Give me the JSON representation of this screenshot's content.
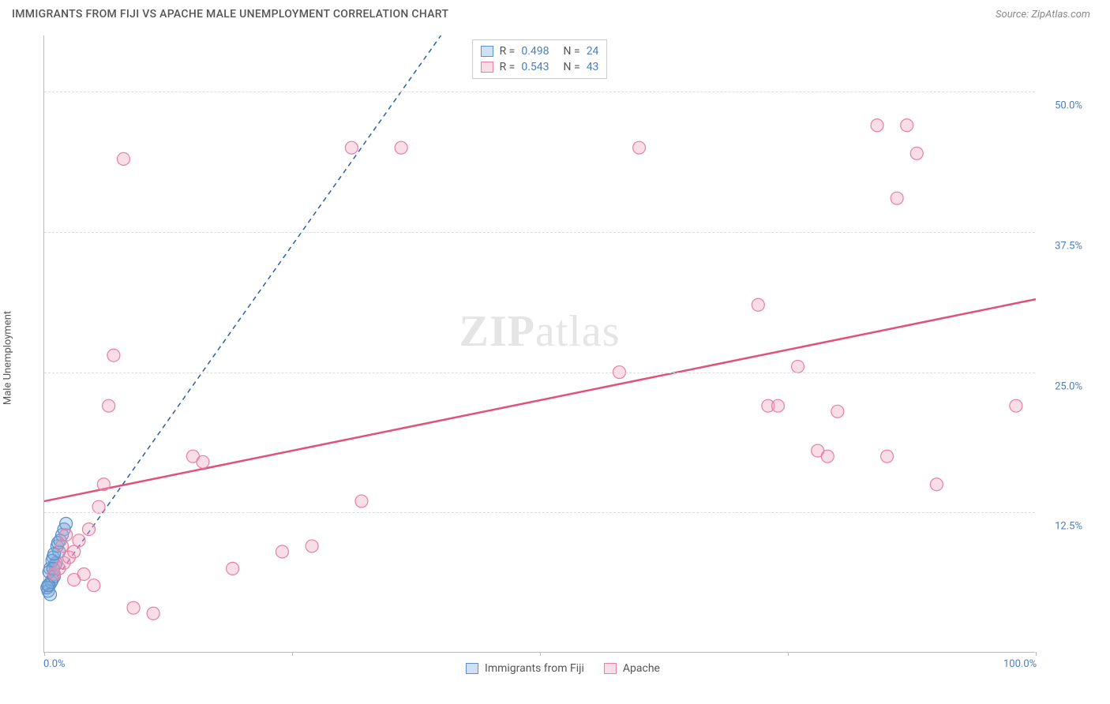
{
  "header": {
    "title": "IMMIGRANTS FROM FIJI VS APACHE MALE UNEMPLOYMENT CORRELATION CHART",
    "source": "Source: ZipAtlas.com"
  },
  "chart": {
    "type": "scatter",
    "y_axis_label": "Male Unemployment",
    "watermark_prefix": "ZIP",
    "watermark_suffix": "atlas",
    "xlim": [
      0,
      100
    ],
    "ylim": [
      0,
      55
    ],
    "x_ticks": [
      0,
      25,
      50,
      75,
      100
    ],
    "x_tick_labels_shown": {
      "0": "0.0%",
      "100": "100.0%"
    },
    "y_ticks": [
      12.5,
      25.0,
      37.5,
      50.0
    ],
    "y_tick_labels": [
      "12.5%",
      "25.0%",
      "37.5%",
      "50.0%"
    ],
    "background_color": "#ffffff",
    "grid_color": "#dddddd",
    "axis_color": "#bbbbbb",
    "tick_label_color": "#4a7ebb",
    "marker_radius": 8,
    "marker_stroke_width": 1.2,
    "series": [
      {
        "name": "Immigrants from Fiji",
        "fill_color": "rgba(120,170,220,0.35)",
        "stroke_color": "#5b8fc7",
        "trend_line_color": "#2a5fa8",
        "trend_line_style": "dashed",
        "trend_line_width": 1.5,
        "R": "0.498",
        "N": "24",
        "points": [
          [
            0.5,
            6.0
          ],
          [
            0.8,
            6.5
          ],
          [
            1.0,
            7.0
          ],
          [
            0.6,
            7.5
          ],
          [
            1.2,
            8.0
          ],
          [
            0.4,
            5.5
          ],
          [
            0.9,
            8.5
          ],
          [
            1.5,
            9.0
          ],
          [
            0.7,
            6.3
          ],
          [
            1.1,
            7.8
          ],
          [
            0.3,
            5.8
          ],
          [
            1.3,
            9.5
          ],
          [
            1.8,
            10.5
          ],
          [
            2.0,
            11.0
          ],
          [
            0.5,
            7.2
          ],
          [
            0.8,
            8.2
          ],
          [
            1.0,
            6.8
          ],
          [
            1.4,
            9.8
          ],
          [
            0.6,
            5.2
          ],
          [
            0.9,
            7.5
          ],
          [
            1.6,
            10.0
          ],
          [
            0.4,
            6.0
          ],
          [
            2.2,
            11.5
          ],
          [
            1.0,
            8.8
          ]
        ],
        "trend_line": {
          "x1": 0.3,
          "y1": 5.5,
          "x2": 40,
          "y2": 55
        }
      },
      {
        "name": "Apache",
        "fill_color": "rgba(240,160,185,0.35)",
        "stroke_color": "#e87fa0",
        "trend_line_color": "#e0527a",
        "trend_line_style": "solid",
        "trend_line_width": 2.5,
        "R": "0.543",
        "N": "43",
        "points": [
          [
            1.0,
            7.0
          ],
          [
            1.5,
            7.5
          ],
          [
            2.0,
            8.0
          ],
          [
            2.5,
            8.5
          ],
          [
            3.0,
            9.0
          ],
          [
            3.5,
            10.0
          ],
          [
            4.0,
            7.0
          ],
          [
            4.5,
            11.0
          ],
          [
            5.0,
            6.0
          ],
          [
            1.8,
            9.5
          ],
          [
            2.2,
            10.5
          ],
          [
            5.5,
            13.0
          ],
          [
            6.0,
            15.0
          ],
          [
            6.5,
            22.0
          ],
          [
            7.0,
            26.5
          ],
          [
            8.0,
            44.0
          ],
          [
            9.0,
            4.0
          ],
          [
            11.0,
            3.5
          ],
          [
            15.0,
            17.5
          ],
          [
            16.0,
            17.0
          ],
          [
            19.0,
            7.5
          ],
          [
            24.0,
            9.0
          ],
          [
            27.0,
            9.5
          ],
          [
            31.0,
            45.0
          ],
          [
            32.0,
            13.5
          ],
          [
            36.0,
            45.0
          ],
          [
            58.0,
            25.0
          ],
          [
            60.0,
            45.0
          ],
          [
            72.0,
            31.0
          ],
          [
            73.0,
            22.0
          ],
          [
            74.0,
            22.0
          ],
          [
            76.0,
            25.5
          ],
          [
            78.0,
            18.0
          ],
          [
            79.0,
            17.5
          ],
          [
            80.0,
            21.5
          ],
          [
            84.0,
            47.0
          ],
          [
            85.0,
            17.5
          ],
          [
            86.0,
            40.5
          ],
          [
            87.0,
            47.0
          ],
          [
            88.0,
            44.5
          ],
          [
            90.0,
            15.0
          ],
          [
            98.0,
            22.0
          ],
          [
            3.0,
            6.5
          ]
        ],
        "trend_line": {
          "x1": 0,
          "y1": 13.5,
          "x2": 100,
          "y2": 31.5
        }
      }
    ],
    "legend_top": {
      "R_label": "R =",
      "N_label": "N ="
    }
  }
}
